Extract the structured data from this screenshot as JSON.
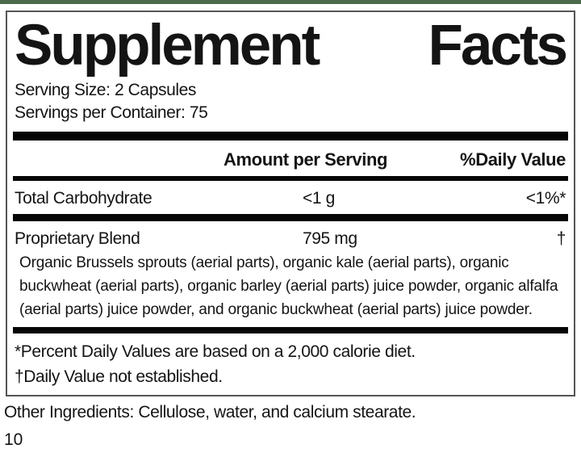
{
  "label": {
    "title": {
      "supplement": "Supplement",
      "facts": "Facts"
    },
    "serving_size": "Serving Size: 2 Capsules",
    "servings_per_container": "Servings per Container: 75",
    "columns": {
      "amount_header": "Amount per Serving",
      "daily_value_header": "%Daily Value"
    },
    "rows": [
      {
        "name": "Total Carbohydrate",
        "amount": "<1 g",
        "daily_value": "<1%*"
      },
      {
        "name": "Proprietary Blend",
        "amount": "795 mg",
        "daily_value": "†",
        "description": "Organic Brussels sprouts (aerial parts), organic kale (aerial parts), organic buckwheat (aerial parts), organic barley (aerial parts) juice powder, organic alfalfa (aerial parts) juice powder, and organic buckwheat (aerial parts) juice powder."
      }
    ],
    "footnotes": [
      "*Percent Daily Values are based on a 2,000 calorie diet.",
      "†Daily Value not established."
    ]
  },
  "page": {
    "other_ingredients": "Other Ingredients: Cellulose, water, and calcium stearate.",
    "page_number": "10",
    "accent_bar_color": "#4a684c"
  }
}
